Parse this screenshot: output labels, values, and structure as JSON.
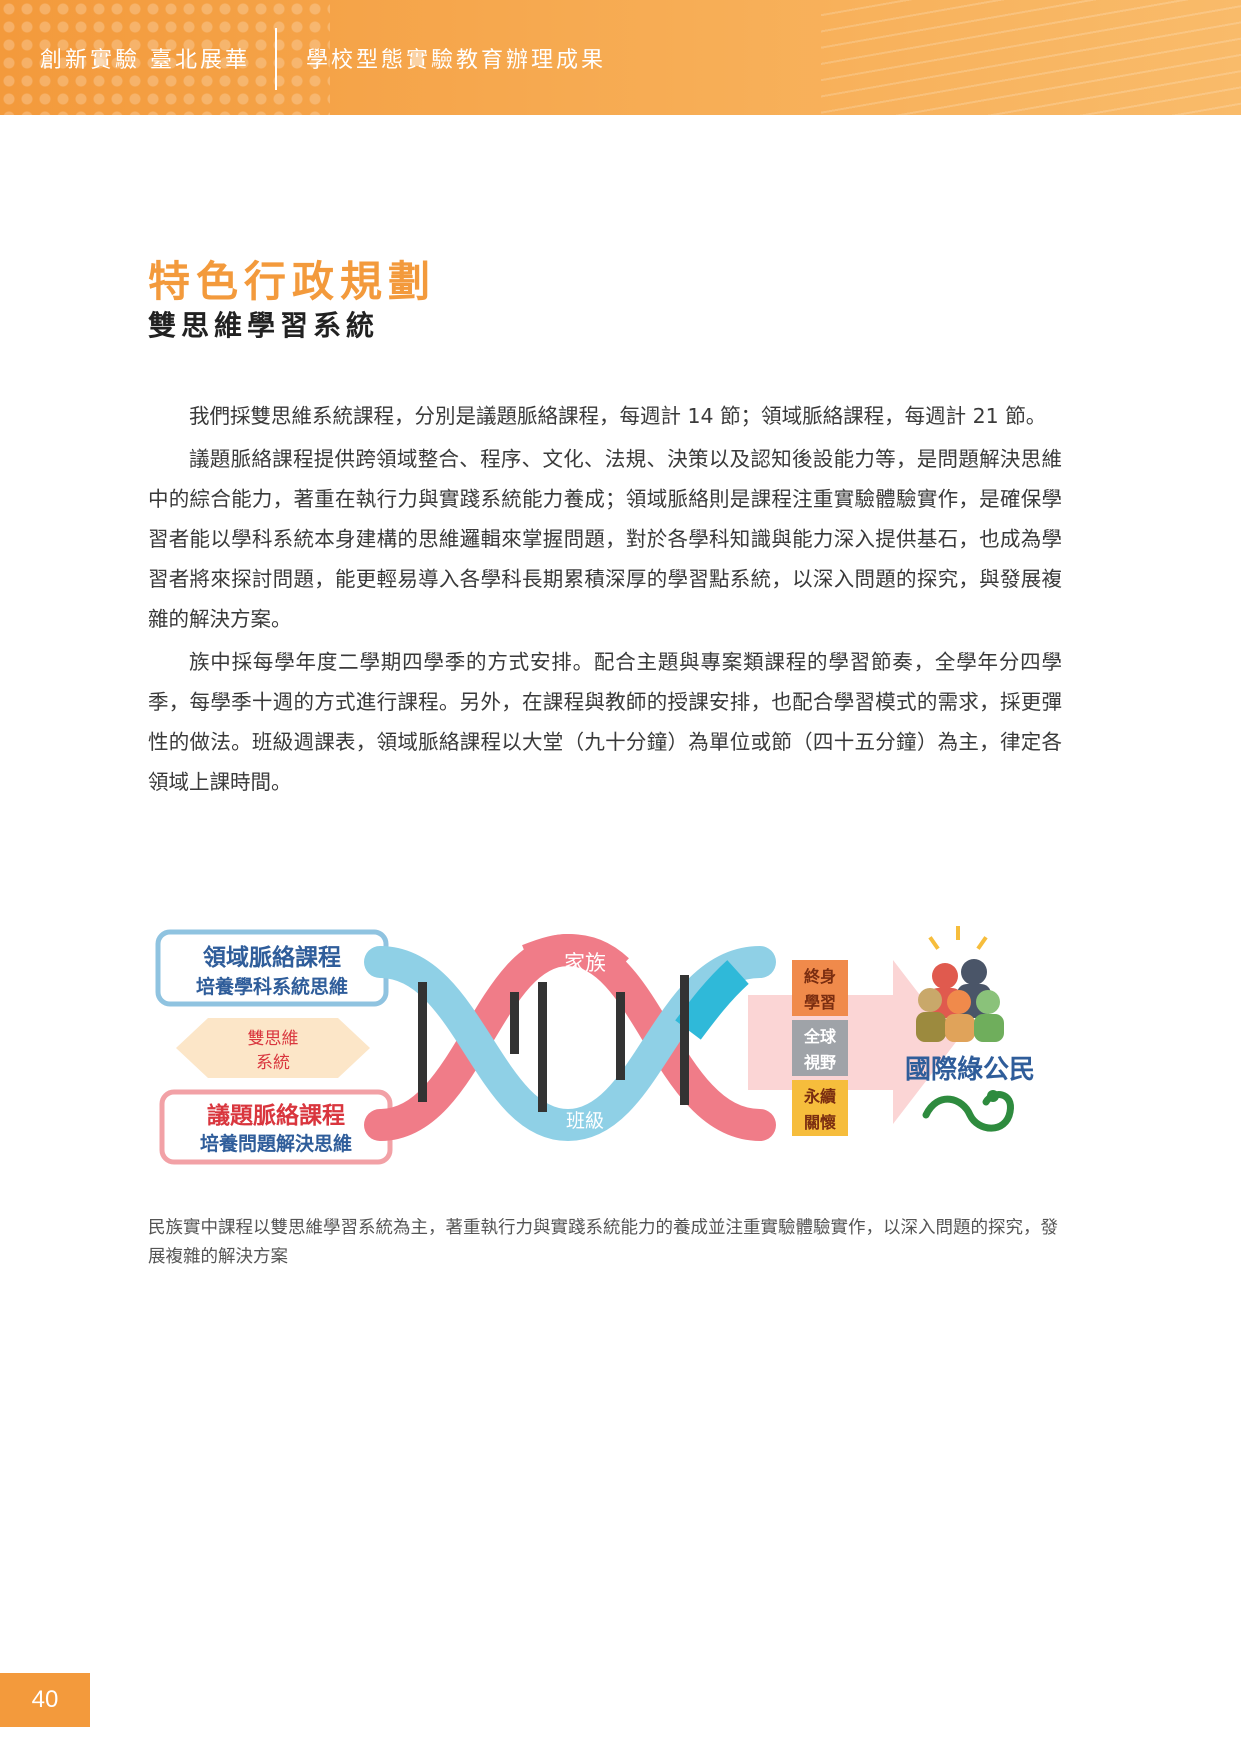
{
  "header": {
    "left_text": "創新實驗 臺北展華",
    "right_text": "學校型態實驗教育辦理成果",
    "colors": {
      "primary": "#f39a3c",
      "light": "#f9bb6a"
    }
  },
  "section": {
    "title": "特色行政規劃",
    "subtitle": "雙思維學習系統"
  },
  "paragraphs": [
    "我們採雙思維系統課程，分別是議題脈絡課程，每週計 14 節；領域脈絡課程，每週計 21 節。",
    "議題脈絡課程提供跨領域整合、程序、文化、法規、決策以及認知後設能力等，是問題解決思維中的綜合能力，著重在執行力與實踐系統能力養成；領域脈絡則是課程注重實驗體驗實作，是確保學習者能以學科系統本身建構的思維邏輯來掌握問題，對於各學科知識與能力深入提供基石，也成為學習者將來探討問題，能更輕易導入各學科長期累積深厚的學習點系統，以深入問題的探究，與發展複雜的解決方案。",
    "族中採每學年度二學期四學季的方式安排。配合主題與專案類課程的學習節奏，全學年分四學季，每學季十週的方式進行課程。另外，在課程與教師的授課安排，也配合學習模式的需求，採更彈性的做法。班級週課表，領域脈絡課程以大堂（九十分鐘）為單位或節（四十五分鐘）為主，律定各領域上課時間。"
  ],
  "diagram": {
    "domain_box": {
      "line1": "領域脈絡課程",
      "line2": "培養學科系統思維"
    },
    "center_box": {
      "line1": "雙思維",
      "line2": "系統"
    },
    "issue_box": {
      "line1": "議題脈絡課程",
      "line2": "培養問題解決思維"
    },
    "helix_top_label": "家族",
    "helix_bottom_label": "班級",
    "outcomes": [
      {
        "line1": "終身",
        "line2": "學習",
        "color": "#f08a4b"
      },
      {
        "line1": "全球",
        "line2": "視野",
        "color": "#9fa3a8"
      },
      {
        "line1": "永續",
        "line2": "關懷",
        "color": "#f6bd3c"
      }
    ],
    "result_label": "國際綠公民",
    "colors": {
      "blue": "#2f5d9a",
      "red": "#d9363e",
      "green": "#2e8b3e",
      "helix_blue": "#8fd0e6",
      "helix_red": "#f07c88"
    }
  },
  "caption": "民族實中課程以雙思維學習系統為主，著重執行力與實踐系統能力的養成並注重實驗體驗實作，以深入問題的探究，發展複雜的解決方案",
  "page_number": "40"
}
